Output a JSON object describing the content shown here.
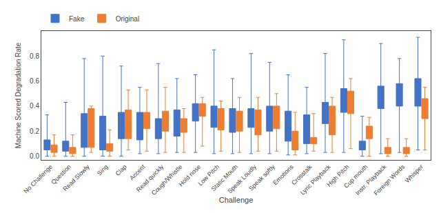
{
  "chart_data": {
    "type": "box",
    "xlabel": "Challenge",
    "ylabel": "Machine Scored Degradation Rate",
    "categories": [
      "No Challenge",
      "Question",
      "Read Slowly",
      "Sing",
      "Clap",
      "Accent",
      "Read quickly",
      "Cough/Whistle",
      "Hold nose",
      "Low Pitch",
      "Static Mouth",
      "Speak Loudly",
      "Speak softly",
      "Emotions",
      "Crosstalk",
      "Lyric Playback",
      "High Pitch",
      "Cup mouth",
      "Instr. Playback",
      "Foreign Words",
      "Whisper"
    ],
    "series": [
      {
        "name": "Fake",
        "color": "#4472c4",
        "values": [
          [
            0.0,
            0.05,
            0.08,
            0.13,
            0.33
          ],
          [
            0.0,
            0.04,
            0.07,
            0.12,
            0.43
          ],
          [
            0.0,
            0.07,
            0.11,
            0.34,
            0.78
          ],
          [
            0.0,
            0.05,
            0.1,
            0.32,
            0.8
          ],
          [
            0.0,
            0.14,
            0.18,
            0.35,
            0.72
          ],
          [
            0.02,
            0.13,
            0.17,
            0.35,
            0.55
          ],
          [
            0.02,
            0.14,
            0.17,
            0.3,
            0.74
          ],
          [
            0.03,
            0.16,
            0.22,
            0.37,
            0.62
          ],
          [
            0.03,
            0.28,
            0.34,
            0.42,
            0.65
          ],
          [
            0.02,
            0.23,
            0.28,
            0.4,
            0.85
          ],
          [
            0.02,
            0.19,
            0.25,
            0.38,
            0.62
          ],
          [
            0.02,
            0.23,
            0.27,
            0.38,
            0.82
          ],
          [
            0.02,
            0.2,
            0.27,
            0.4,
            0.75
          ],
          [
            0.01,
            0.12,
            0.2,
            0.36,
            0.65
          ],
          [
            0.02,
            0.1,
            0.15,
            0.33,
            0.55
          ],
          [
            0.03,
            0.26,
            0.33,
            0.43,
            0.82
          ],
          [
            0.03,
            0.35,
            0.44,
            0.54,
            0.93
          ],
          [
            0.0,
            0.05,
            0.08,
            0.12,
            0.32
          ],
          [
            0.02,
            0.38,
            0.44,
            0.56,
            0.9
          ],
          [
            0.03,
            0.4,
            0.48,
            0.58,
            0.78
          ],
          [
            0.05,
            0.4,
            0.5,
            0.62,
            0.95
          ]
        ]
      },
      {
        "name": "Original",
        "color": "#ed7d31",
        "values": [
          [
            0.0,
            0.03,
            0.06,
            0.09,
            0.17
          ],
          [
            0.0,
            0.02,
            0.05,
            0.07,
            0.17
          ],
          [
            0.03,
            0.07,
            0.1,
            0.38,
            0.4
          ],
          [
            0.0,
            0.04,
            0.08,
            0.1,
            0.21
          ],
          [
            0.05,
            0.14,
            0.2,
            0.37,
            0.53
          ],
          [
            0.04,
            0.22,
            0.26,
            0.35,
            0.53
          ],
          [
            0.03,
            0.2,
            0.24,
            0.36,
            0.55
          ],
          [
            0.03,
            0.19,
            0.24,
            0.3,
            0.38
          ],
          [
            0.08,
            0.32,
            0.38,
            0.42,
            0.47
          ],
          [
            0.04,
            0.21,
            0.26,
            0.38,
            0.44
          ],
          [
            0.03,
            0.2,
            0.25,
            0.36,
            0.47
          ],
          [
            0.04,
            0.17,
            0.2,
            0.37,
            0.47
          ],
          [
            0.04,
            0.22,
            0.27,
            0.4,
            0.5
          ],
          [
            0.01,
            0.05,
            0.07,
            0.2,
            0.35
          ],
          [
            0.04,
            0.1,
            0.12,
            0.15,
            0.34
          ],
          [
            0.03,
            0.17,
            0.21,
            0.4,
            0.47
          ],
          [
            0.06,
            0.34,
            0.42,
            0.52,
            0.62
          ],
          [
            0.0,
            0.14,
            0.18,
            0.24,
            0.31
          ],
          [
            0.0,
            0.02,
            0.05,
            0.07,
            0.14
          ],
          [
            0.0,
            0.02,
            0.05,
            0.07,
            0.14
          ],
          [
            0.05,
            0.3,
            0.38,
            0.46,
            0.55
          ]
        ]
      }
    ],
    "ylim": [
      -0.03,
      1.0
    ],
    "yticks": [
      {
        "value": 0.0,
        "label": "0.0"
      },
      0.2,
      0.4,
      0.6,
      0.8
    ],
    "legend": "upper left",
    "grid": false
  }
}
